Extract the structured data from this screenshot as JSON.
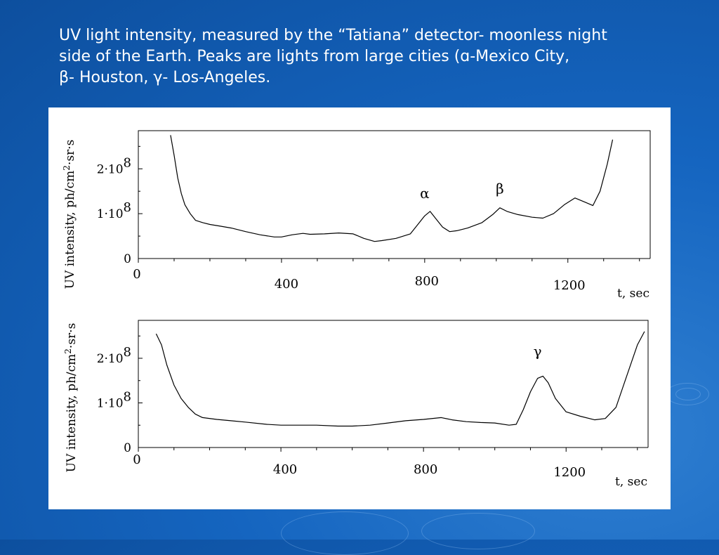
{
  "slide": {
    "caption_lines": [
      "UV light intensity, measured by the “Tatiana” detector- moonless night",
      "side of the Earth. Peaks are lights from large cities (ɑ-Mexico City,",
      "β- Houston, γ- Los-Angeles."
    ],
    "colors": {
      "background": "#1565c0",
      "panel": "#ffffff",
      "curve": "#000000",
      "caption_text": "#ffffff"
    }
  },
  "chart_data": [
    {
      "type": "line",
      "ylabel_parts": [
        "UV intensity, ph/cm",
        "2",
        "·sr·s"
      ],
      "xlabel": "t, sec",
      "x_ticks": [
        "0",
        "400",
        "800",
        "1200"
      ],
      "y_ticks": [
        {
          "mantissa": "0",
          "exp": ""
        },
        {
          "mantissa": "1·10",
          "exp": "8"
        },
        {
          "mantissa": "2·10",
          "exp": "8"
        }
      ],
      "xlim": [
        0,
        1430
      ],
      "ylim": [
        0,
        285000000.0
      ],
      "annotations": [
        {
          "text": "α",
          "x": 800,
          "y": 135000000.0
        },
        {
          "text": "β",
          "x": 1010,
          "y": 145000000.0
        }
      ],
      "series": [
        {
          "x": [
            90,
            100,
            110,
            120,
            130,
            145,
            160,
            180,
            200,
            230,
            260,
            300,
            340,
            380,
            400,
            430,
            460,
            480,
            520,
            560,
            600,
            630,
            660,
            680,
            720,
            760,
            780,
            800,
            815,
            830,
            850,
            870,
            890,
            920,
            960,
            990,
            1010,
            1030,
            1060,
            1100,
            1130,
            1160,
            1190,
            1220,
            1250,
            1270,
            1290,
            1310,
            1325
          ],
          "y": [
            275000000.0,
            230000000.0,
            180000000.0,
            145000000.0,
            120000000.0,
            100000000.0,
            85000000.0,
            80000000.0,
            76000000.0,
            72000000.0,
            68000000.0,
            60000000.0,
            53000000.0,
            48000000.0,
            48000000.0,
            53000000.0,
            56000000.0,
            54000000.0,
            55000000.0,
            57000000.0,
            55000000.0,
            45000000.0,
            38000000.0,
            40000000.0,
            45000000.0,
            55000000.0,
            75000000.0,
            95000000.0,
            105000000.0,
            90000000.0,
            70000000.0,
            60000000.0,
            62000000.0,
            68000000.0,
            80000000.0,
            98000000.0,
            113000000.0,
            105000000.0,
            98000000.0,
            92000000.0,
            90000000.0,
            100000000.0,
            120000000.0,
            135000000.0,
            125000000.0,
            118000000.0,
            150000000.0,
            210000000.0,
            265000000.0
          ]
        }
      ]
    },
    {
      "type": "line",
      "ylabel_parts": [
        "UV intensity, ph/cm",
        "2",
        "·sr·s"
      ],
      "xlabel": "t, sec",
      "x_ticks": [
        "0",
        "400",
        "800",
        "1200"
      ],
      "y_ticks": [
        {
          "mantissa": "0",
          "exp": ""
        },
        {
          "mantissa": "1·10",
          "exp": "8"
        },
        {
          "mantissa": "2·10",
          "exp": "8"
        }
      ],
      "xlim": [
        0,
        1430
      ],
      "ylim": [
        0,
        285000000.0
      ],
      "annotations": [
        {
          "text": "γ",
          "x": 1120,
          "y": 205000000.0
        }
      ],
      "series": [
        {
          "x": [
            50,
            65,
            80,
            100,
            120,
            140,
            160,
            180,
            220,
            260,
            300,
            360,
            400,
            450,
            500,
            560,
            600,
            650,
            700,
            750,
            800,
            850,
            880,
            920,
            960,
            1000,
            1040,
            1060,
            1080,
            1100,
            1120,
            1135,
            1150,
            1170,
            1200,
            1240,
            1280,
            1310,
            1340,
            1370,
            1400,
            1420
          ],
          "y": [
            255000000.0,
            230000000.0,
            185000000.0,
            140000000.0,
            110000000.0,
            90000000.0,
            75000000.0,
            67000000.0,
            63000000.0,
            60000000.0,
            57000000.0,
            52000000.0,
            50000000.0,
            50000000.0,
            50000000.0,
            48000000.0,
            48000000.0,
            50000000.0,
            55000000.0,
            60000000.0,
            63000000.0,
            67000000.0,
            62000000.0,
            58000000.0,
            56000000.0,
            55000000.0,
            50000000.0,
            52000000.0,
            85000000.0,
            125000000.0,
            155000000.0,
            160000000.0,
            145000000.0,
            110000000.0,
            80000000.0,
            70000000.0,
            62000000.0,
            65000000.0,
            90000000.0,
            160000000.0,
            230000000.0,
            260000000.0
          ]
        }
      ]
    }
  ]
}
